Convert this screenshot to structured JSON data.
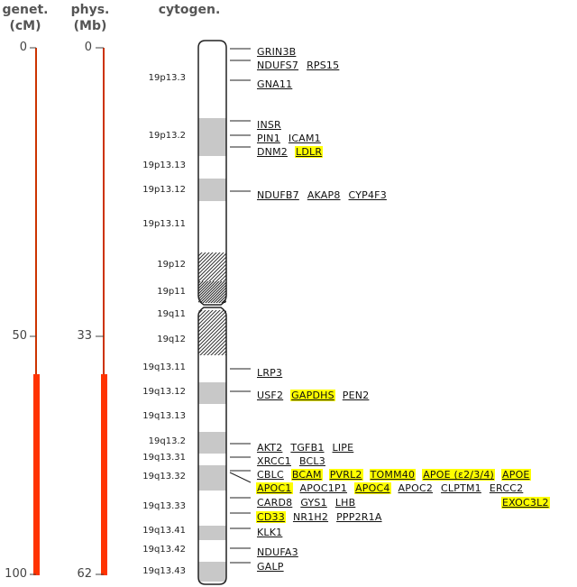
{
  "headers": {
    "genet": "genet.",
    "genet_unit": "(cM)",
    "phys": "phys.",
    "phys_unit": "(Mb)",
    "cytogen": "cytogen."
  },
  "genet_scale": {
    "top": "0",
    "mid": "50",
    "bottom": "100"
  },
  "phys_scale": {
    "top": "0",
    "mid": "33",
    "bottom": "62"
  },
  "colors": {
    "bar_thin": "#cc3300",
    "bar_thick": "#ff3300",
    "band_gray": "#c8c8c8",
    "highlight": "#ffff00"
  },
  "band_labels": [
    "19p13.3",
    "19p13.2",
    "19p13.13",
    "19p13.12",
    "19p13.11",
    "19p12",
    "19p11",
    "19q11",
    "19q12",
    "19q13.11",
    "19q13.12",
    "19q13.13",
    "19q13.2",
    "19q13.31",
    "19q13.32",
    "19q13.33",
    "19q13.41",
    "19q13.42",
    "19q13.43"
  ],
  "gene_rows": [
    {
      "genes": [
        {
          "name": "GRIN3B",
          "hl": false
        }
      ]
    },
    {
      "genes": [
        {
          "name": "NDUFS7",
          "hl": false
        },
        {
          "name": "RPS15",
          "hl": false
        }
      ]
    },
    {
      "genes": [
        {
          "name": "GNA11",
          "hl": false
        }
      ]
    },
    {
      "genes": [
        {
          "name": "INSR",
          "hl": false
        }
      ]
    },
    {
      "genes": [
        {
          "name": "PIN1",
          "hl": false
        },
        {
          "name": "ICAM1",
          "hl": false
        }
      ]
    },
    {
      "genes": [
        {
          "name": "DNM2",
          "hl": false
        },
        {
          "name": "LDLR",
          "hl": true
        }
      ]
    },
    {
      "genes": [
        {
          "name": "NDUFB7",
          "hl": false
        },
        {
          "name": "AKAP8",
          "hl": false
        },
        {
          "name": "CYP4F3",
          "hl": false
        }
      ]
    },
    {
      "genes": [
        {
          "name": "LRP3",
          "hl": false
        }
      ]
    },
    {
      "genes": [
        {
          "name": "USF2",
          "hl": false
        },
        {
          "name": "GAPDHS",
          "hl": true
        },
        {
          "name": "PEN2",
          "hl": false
        }
      ]
    },
    {
      "genes": [
        {
          "name": "AKT2",
          "hl": false
        },
        {
          "name": "TGFB1",
          "hl": false
        },
        {
          "name": "LIPE",
          "hl": false
        }
      ]
    },
    {
      "genes": [
        {
          "name": "XRCC1",
          "hl": false
        },
        {
          "name": "BCL3",
          "hl": false
        }
      ]
    },
    {
      "genes": [
        {
          "name": "CBLC",
          "hl": false
        },
        {
          "name": "BCAM",
          "hl": true
        },
        {
          "name": "PVRL2",
          "hl": true
        },
        {
          "name": "TOMM40",
          "hl": true
        },
        {
          "name": "APOE (ε2/3/4)",
          "hl": true
        },
        {
          "name": "APOE",
          "hl": true
        }
      ]
    },
    {
      "genes": [
        {
          "name": "APOC1",
          "hl": true
        },
        {
          "name": "APOC1P1",
          "hl": false
        },
        {
          "name": "APOC4",
          "hl": true
        },
        {
          "name": "APOC2",
          "hl": false
        },
        {
          "name": "CLPTM1",
          "hl": false
        },
        {
          "name": "ERCC2",
          "hl": false
        }
      ]
    },
    {
      "genes": [
        {
          "name": "EXOC3L2",
          "hl": true
        }
      ]
    },
    {
      "genes": [
        {
          "name": "CARD8",
          "hl": false
        },
        {
          "name": "GYS1",
          "hl": false
        },
        {
          "name": "LHB",
          "hl": false
        }
      ]
    },
    {
      "genes": [
        {
          "name": "CD33",
          "hl": true
        },
        {
          "name": "NR1H2",
          "hl": false
        },
        {
          "name": "PPP2R1A",
          "hl": false
        }
      ]
    },
    {
      "genes": [
        {
          "name": "KLK1",
          "hl": false
        }
      ]
    },
    {
      "genes": [
        {
          "name": "NDUFA3",
          "hl": false
        }
      ]
    },
    {
      "genes": [
        {
          "name": "GALP",
          "hl": false
        }
      ]
    }
  ]
}
